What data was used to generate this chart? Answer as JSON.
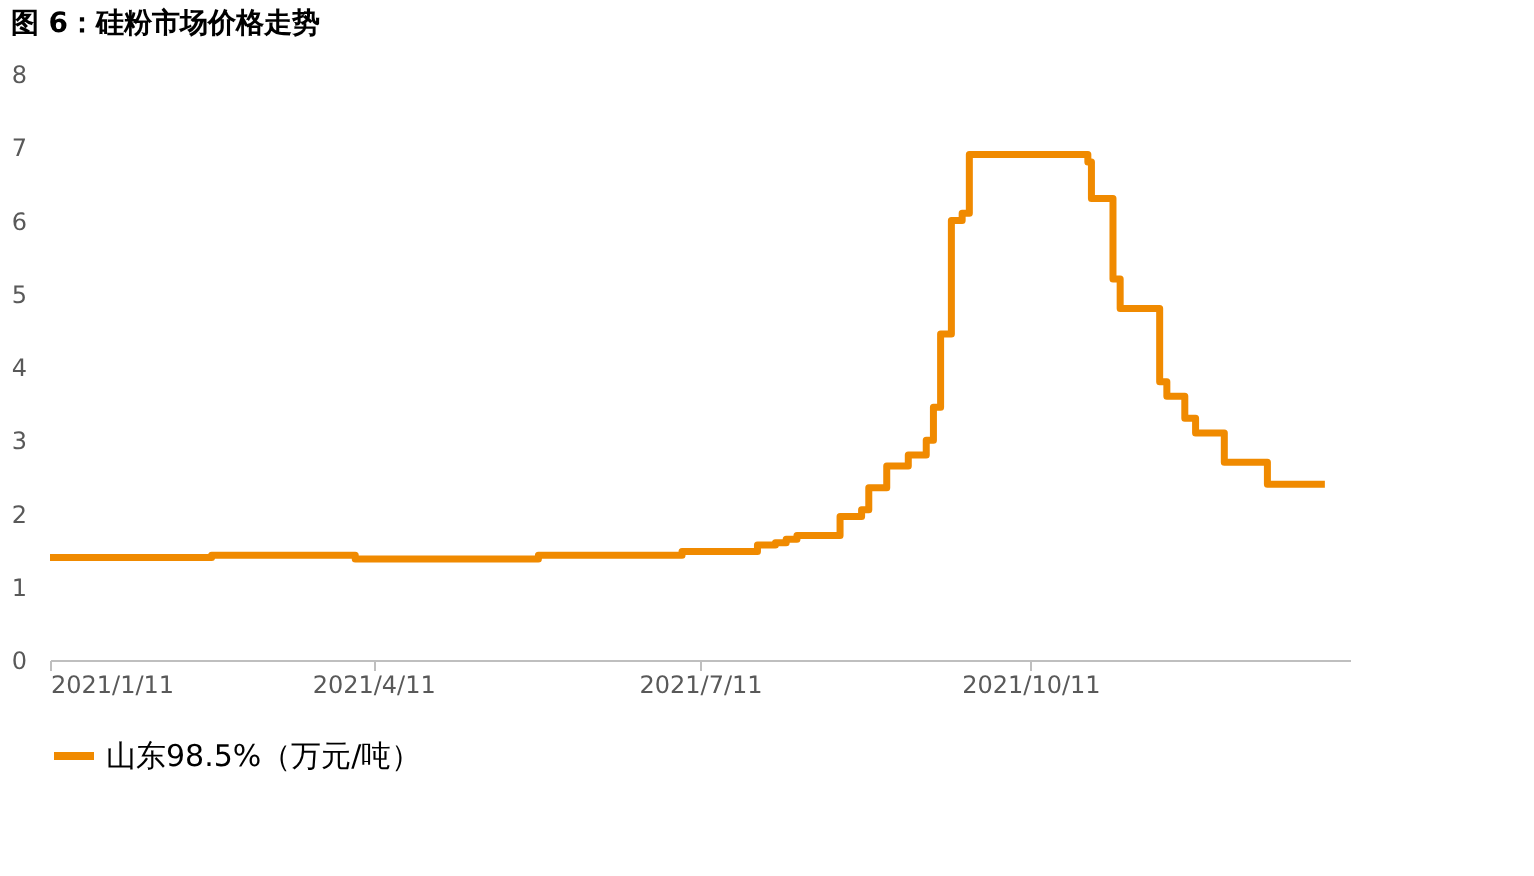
{
  "chart_data": {
    "type": "step",
    "title": "图 6：硅粉市场价格走势",
    "series": [
      {
        "name": "山东98.5%（万元/吨）",
        "color": "#f08a00",
        "x": [
          "2021-01-11",
          "2021-02-25",
          "2021-04-06",
          "2021-05-27",
          "2021-07-06",
          "2021-07-27",
          "2021-08-01",
          "2021-08-04",
          "2021-08-07",
          "2021-08-19",
          "2021-08-25",
          "2021-08-27",
          "2021-09-01",
          "2021-09-07",
          "2021-09-12",
          "2021-09-14",
          "2021-09-16",
          "2021-09-19",
          "2021-09-22",
          "2021-09-24",
          "2021-10-27",
          "2021-10-28",
          "2021-11-03",
          "2021-11-05",
          "2021-11-16",
          "2021-11-18",
          "2021-11-23",
          "2021-11-26",
          "2021-12-04",
          "2021-12-16",
          "2022-01-01"
        ],
        "values": [
          1.4,
          1.43,
          1.38,
          1.43,
          1.48,
          1.57,
          1.6,
          1.65,
          1.7,
          1.96,
          2.05,
          2.35,
          2.65,
          2.8,
          3.0,
          3.45,
          4.45,
          6.0,
          6.1,
          6.9,
          6.8,
          6.3,
          5.2,
          4.8,
          3.8,
          3.6,
          3.3,
          3.1,
          2.7,
          2.4,
          2.4
        ]
      }
    ],
    "xlim": [
      "2021-01-11",
      "2022-01-08"
    ],
    "xticks": [
      {
        "value": "2021-01-11",
        "label": "2021/1/11"
      },
      {
        "value": "2021-04-11",
        "label": "2021/4/11"
      },
      {
        "value": "2021-07-11",
        "label": "2021/7/11"
      },
      {
        "value": "2021-10-11",
        "label": "2021/10/11"
      }
    ],
    "ylim": [
      0,
      8
    ],
    "yticks": [
      0,
      1,
      2,
      3,
      4,
      5,
      6,
      7,
      8
    ],
    "grid": false,
    "legend": "bottom",
    "line_style": "solid",
    "marker": "none"
  }
}
